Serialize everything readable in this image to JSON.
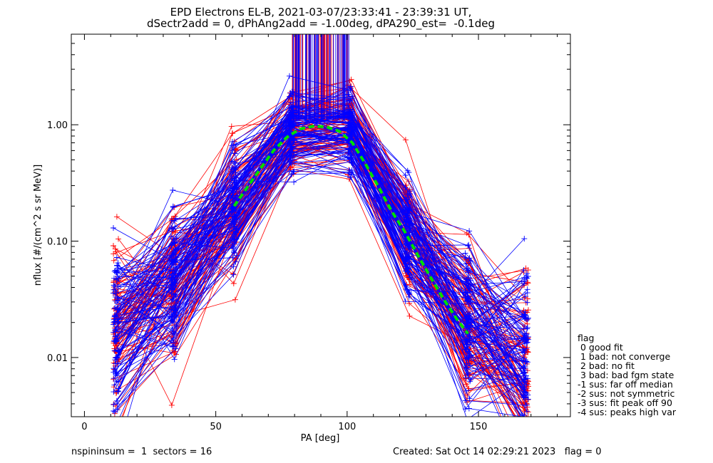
{
  "titles": {
    "line1": "EPD Electrons EL-B, 2021-03-07/23:33:41 - 23:39:31 UT,",
    "line2": "dSectr2add = 0, dPhAng2add = -1.00deg, dPA290_est=  -0.1deg"
  },
  "legend": {
    "title": "flag",
    "items": [
      " 0 good fit",
      " 1 bad: not converge",
      " 2 bad: no fit",
      " 3 bad: bad fgm state",
      "-1 sus: far off median",
      "-2 sus: not symmetric",
      "-3 sus: fit peak off 90",
      "-4 sus: peaks high var"
    ]
  },
  "footer": {
    "left": "nspininsum =  1  sectors = 16",
    "right": "Created: Sat Oct 14 02:29:21 2023   flag = 0"
  },
  "chart_data": {
    "type": "line",
    "xlabel": "PA [deg]",
    "ylabel": "nflux [#/(cm^2 s sr MeV)]",
    "xlim": [
      -5,
      185
    ],
    "ylim": [
      0.0031,
      6.0
    ],
    "yscale": "log",
    "x_ticks": [
      0,
      50,
      100,
      150
    ],
    "y_ticks": [
      {
        "value": 0.01,
        "label": "0.01"
      },
      {
        "value": 0.1,
        "label": "0.10"
      },
      {
        "value": 1.0,
        "label": "1.00"
      }
    ],
    "pa_bins": [
      12,
      34,
      57,
      79,
      101,
      123,
      146,
      168
    ],
    "series": [
      {
        "color": "#ff0000",
        "count": 90,
        "median": [
          0.018,
          0.04,
          0.2,
          0.85,
          0.9,
          0.12,
          0.018,
          0.008
        ]
      },
      {
        "color": "#0000ff",
        "count": 100,
        "median": [
          0.016,
          0.04,
          0.2,
          0.82,
          0.85,
          0.1,
          0.02,
          0.01
        ]
      }
    ],
    "fit": {
      "color": "#00dd00",
      "style": "dashed",
      "x": [
        57,
        62,
        67,
        72,
        77,
        82,
        87,
        92,
        97,
        102,
        107,
        112,
        117,
        122,
        127,
        132,
        137,
        142,
        146
      ],
      "y": [
        0.2,
        0.29,
        0.42,
        0.6,
        0.78,
        0.92,
        0.97,
        0.96,
        0.88,
        0.7,
        0.46,
        0.29,
        0.18,
        0.12,
        0.075,
        0.048,
        0.031,
        0.021,
        0.016
      ]
    }
  }
}
